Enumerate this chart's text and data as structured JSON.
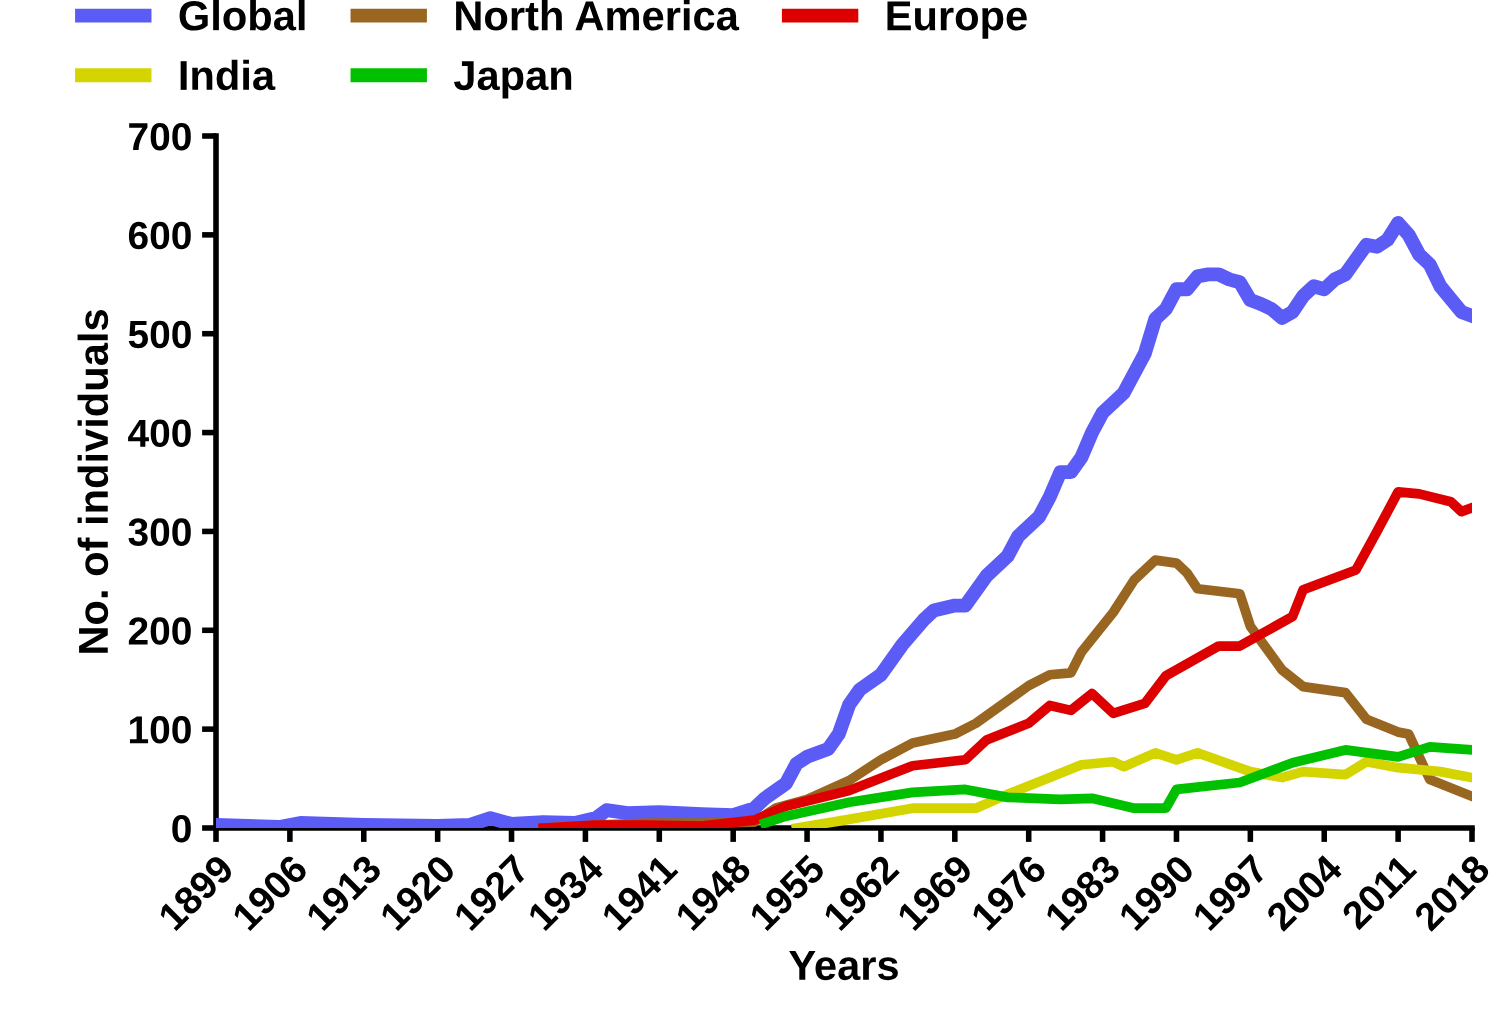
{
  "chart_data": {
    "type": "line",
    "xlabel": "Years",
    "ylabel": "No. of individuals",
    "xlim": [
      1899,
      2018
    ],
    "ylim": [
      0,
      700
    ],
    "xticks": [
      1899,
      1906,
      1913,
      1920,
      1927,
      1934,
      1941,
      1948,
      1955,
      1962,
      1969,
      1976,
      1983,
      1990,
      1997,
      2004,
      2011,
      2018
    ],
    "yticks": [
      0,
      100,
      200,
      300,
      400,
      500,
      600,
      700
    ],
    "grid": false,
    "legend": "top",
    "line_style": "solid",
    "marker": "none",
    "series": [
      {
        "name": "Global",
        "color": "#5b5bf5",
        "x": [
          1899,
          1905,
          1907,
          1913,
          1920,
          1923,
          1925,
          1927,
          1930,
          1933,
          1935,
          1936,
          1938,
          1941,
          1945,
          1948,
          1950,
          1951,
          1953,
          1954,
          1955,
          1957,
          1958,
          1959,
          1960,
          1962,
          1964,
          1966,
          1967,
          1969,
          1970,
          1971,
          1972,
          1974,
          1975,
          1977,
          1978,
          1979,
          1980,
          1981,
          1982,
          1983,
          1985,
          1986,
          1987,
          1988,
          1989,
          1990,
          1991,
          1992,
          1993,
          1994,
          1995,
          1996,
          1997,
          1998,
          1999,
          2000,
          2001,
          2002,
          2003,
          2004,
          2005,
          2006,
          2007,
          2008,
          2009,
          2010,
          2011,
          2012,
          2013,
          2014,
          2015,
          2016,
          2017,
          2018
        ],
        "values": [
          3,
          1,
          5,
          3,
          2,
          3,
          10,
          4,
          6,
          5,
          10,
          18,
          15,
          16,
          14,
          13,
          20,
          30,
          45,
          65,
          72,
          80,
          95,
          125,
          140,
          155,
          185,
          210,
          220,
          225,
          225,
          240,
          255,
          275,
          295,
          315,
          335,
          360,
          360,
          375,
          400,
          420,
          440,
          460,
          480,
          515,
          525,
          545,
          545,
          558,
          560,
          560,
          555,
          552,
          534,
          530,
          525,
          516,
          522,
          538,
          548,
          545,
          555,
          560,
          575,
          590,
          588,
          595,
          612,
          600,
          580,
          570,
          548,
          535,
          522,
          518
        ]
      },
      {
        "name": "North America",
        "color": "#996622",
        "x": [
          1930,
          1935,
          1940,
          1945,
          1950,
          1952,
          1955,
          1959,
          1962,
          1965,
          1969,
          1971,
          1976,
          1978,
          1980,
          1981,
          1984,
          1986,
          1988,
          1990,
          1991,
          1992,
          1996,
          1997,
          2000,
          2002,
          2006,
          2008,
          2011,
          2012,
          2014,
          2018
        ],
        "values": [
          0,
          3,
          5,
          5,
          6,
          20,
          29,
          48,
          69,
          86,
          95,
          106,
          144,
          155,
          157,
          178,
          218,
          251,
          271,
          268,
          258,
          242,
          237,
          204,
          160,
          143,
          137,
          110,
          97,
          95,
          49,
          32
        ]
      },
      {
        "name": "Europe",
        "color": "#dd0000",
        "x": [
          1930,
          1935,
          1940,
          1945,
          1950,
          1953,
          1959,
          1965,
          1970,
          1972,
          1976,
          1978,
          1980,
          1982,
          1984,
          1987,
          1989,
          1994,
          1996,
          2001,
          2002,
          2007,
          2009,
          2011,
          2013,
          2016,
          2017,
          2018
        ],
        "values": [
          0,
          3,
          3,
          2,
          8,
          22,
          38,
          63,
          69,
          89,
          106,
          124,
          119,
          136,
          116,
          126,
          154,
          184,
          184,
          214,
          241,
          261,
          300,
          340,
          338,
          330,
          320,
          324
        ]
      },
      {
        "name": "India",
        "color": "#d4d400",
        "x": [
          1954,
          1958,
          1965,
          1971,
          1974,
          1978,
          1981,
          1984,
          1985,
          1988,
          1990,
          1992,
          1997,
          2000,
          2002,
          2006,
          2008,
          2011,
          2015,
          2018
        ],
        "values": [
          0,
          7,
          20,
          20,
          34,
          51,
          64,
          67,
          62,
          76,
          69,
          76,
          57,
          51,
          57,
          54,
          67,
          61,
          57,
          51
        ]
      },
      {
        "name": "Japan",
        "color": "#00c000",
        "x": [
          1951,
          1953,
          1959,
          1965,
          1970,
          1974,
          1979,
          1982,
          1986,
          1989,
          1990,
          1996,
          2001,
          2006,
          2011,
          2014,
          2018
        ],
        "values": [
          5,
          12,
          26,
          36,
          39,
          31,
          29,
          30,
          20,
          20,
          39,
          46,
          66,
          79,
          72,
          82,
          79
        ]
      }
    ]
  }
}
